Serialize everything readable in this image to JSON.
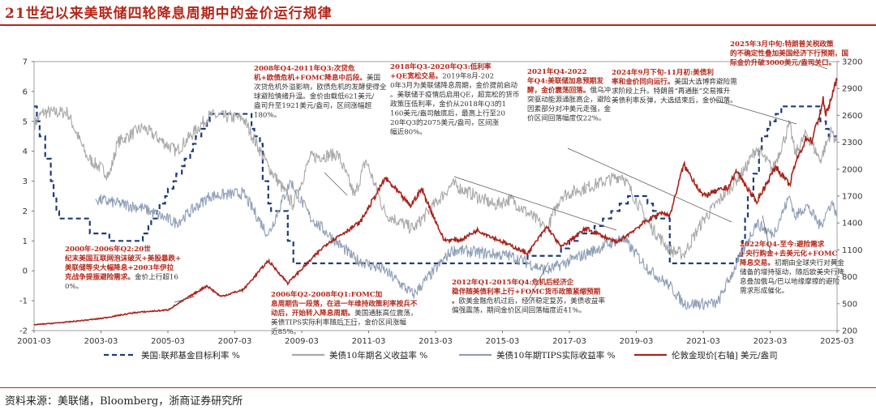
{
  "title": "21世纪以来美联储四轮降息周期中的金价运行规律",
  "source": "资料来源：美联储，Bloomberg，浙商证券研究所",
  "colors": {
    "accent": "#b5271a",
    "fed": "#1f3b78",
    "nominal": "#a9a9a9",
    "tips": "#8f9fb8",
    "gold": "#a8241b"
  },
  "chart_data": {
    "type": "line",
    "xlim": [
      "2001-03",
      "2025-03"
    ],
    "x_ticks": [
      "2001-03",
      "2003-03",
      "2005-03",
      "2007-03",
      "2009-03",
      "2011-03",
      "2013-03",
      "2015-03",
      "2017-03",
      "2019-03",
      "2021-03",
      "2023-03",
      "2025-03"
    ],
    "ylim_left": [
      -2,
      7
    ],
    "y_ticks_left": [
      "-2",
      "-1",
      "0",
      "1",
      "2",
      "3",
      "4",
      "5",
      "6",
      "7"
    ],
    "ylim_right": [
      200,
      3200
    ],
    "y_ticks_right": [
      "200",
      "500",
      "800",
      "1100",
      "1400",
      "1700",
      "2000",
      "2300",
      "2600",
      "2900",
      "3200"
    ],
    "grid": false,
    "legend_position": "bottom",
    "series": [
      {
        "name": "美国:联邦基金目标利率 %",
        "axis": "left",
        "style": "dashed",
        "points": [
          [
            "2001-03",
            5.5
          ],
          [
            "2001-04",
            5.0
          ],
          [
            "2001-05",
            4.5
          ],
          [
            "2001-07",
            3.75
          ],
          [
            "2001-09",
            3.0
          ],
          [
            "2001-10",
            2.5
          ],
          [
            "2001-11",
            2.0
          ],
          [
            "2001-12",
            1.75
          ],
          [
            "2002-11",
            1.25
          ],
          [
            "2003-06",
            1.0
          ],
          [
            "2004-06",
            1.25
          ],
          [
            "2004-08",
            1.5
          ],
          [
            "2004-09",
            1.75
          ],
          [
            "2004-11",
            2.0
          ],
          [
            "2004-12",
            2.25
          ],
          [
            "2005-02",
            2.5
          ],
          [
            "2005-03",
            2.75
          ],
          [
            "2005-05",
            3.0
          ],
          [
            "2005-06",
            3.25
          ],
          [
            "2005-08",
            3.5
          ],
          [
            "2005-09",
            3.75
          ],
          [
            "2005-11",
            4.0
          ],
          [
            "2005-12",
            4.25
          ],
          [
            "2006-01",
            4.5
          ],
          [
            "2006-03",
            4.75
          ],
          [
            "2006-05",
            5.0
          ],
          [
            "2006-06",
            5.25
          ],
          [
            "2007-09",
            4.75
          ],
          [
            "2007-10",
            4.5
          ],
          [
            "2007-12",
            4.25
          ],
          [
            "2008-01",
            3.0
          ],
          [
            "2008-03",
            2.25
          ],
          [
            "2008-04",
            2.0
          ],
          [
            "2008-10",
            1.0
          ],
          [
            "2008-12",
            0.25
          ],
          [
            "2015-12",
            0.5
          ],
          [
            "2016-12",
            0.75
          ],
          [
            "2017-03",
            1.0
          ],
          [
            "2017-06",
            1.25
          ],
          [
            "2017-12",
            1.5
          ],
          [
            "2018-03",
            1.75
          ],
          [
            "2018-06",
            2.0
          ],
          [
            "2018-09",
            2.25
          ],
          [
            "2018-12",
            2.5
          ],
          [
            "2019-07",
            2.25
          ],
          [
            "2019-09",
            2.0
          ],
          [
            "2019-10",
            1.75
          ],
          [
            "2020-03",
            0.25
          ],
          [
            "2022-03",
            0.5
          ],
          [
            "2022-05",
            1.0
          ],
          [
            "2022-06",
            1.75
          ],
          [
            "2022-07",
            2.5
          ],
          [
            "2022-09",
            3.25
          ],
          [
            "2022-11",
            4.0
          ],
          [
            "2022-12",
            4.5
          ],
          [
            "2023-02",
            4.75
          ],
          [
            "2023-03",
            5.0
          ],
          [
            "2023-05",
            5.25
          ],
          [
            "2023-07",
            5.5
          ],
          [
            "2024-09",
            5.0
          ],
          [
            "2024-11",
            4.75
          ],
          [
            "2024-12",
            4.5
          ],
          [
            "2025-03",
            4.5
          ]
        ]
      },
      {
        "name": "美债10年期名义收益率 %",
        "axis": "left",
        "style": "solid",
        "points": [
          [
            "2001-03",
            4.9
          ],
          [
            "2001-06",
            5.3
          ],
          [
            "2002-03",
            5.3
          ],
          [
            "2002-10",
            3.8
          ],
          [
            "2003-06",
            3.2
          ],
          [
            "2003-09",
            4.3
          ],
          [
            "2004-06",
            4.8
          ],
          [
            "2005-06",
            4.0
          ],
          [
            "2006-06",
            5.2
          ],
          [
            "2007-06",
            5.1
          ],
          [
            "2008-03",
            3.5
          ],
          [
            "2008-12",
            2.2
          ],
          [
            "2009-06",
            3.8
          ],
          [
            "2010-04",
            3.9
          ],
          [
            "2010-10",
            2.5
          ],
          [
            "2011-02",
            3.7
          ],
          [
            "2011-09",
            1.9
          ],
          [
            "2012-07",
            1.4
          ],
          [
            "2013-09",
            2.9
          ],
          [
            "2014-12",
            2.2
          ],
          [
            "2015-06",
            2.4
          ],
          [
            "2016-07",
            1.4
          ],
          [
            "2016-12",
            2.5
          ],
          [
            "2018-10",
            3.2
          ],
          [
            "2019-08",
            1.5
          ],
          [
            "2020-03",
            0.7
          ],
          [
            "2020-08",
            0.55
          ],
          [
            "2021-03",
            1.7
          ],
          [
            "2022-06",
            3.4
          ],
          [
            "2022-10",
            4.1
          ],
          [
            "2023-04",
            3.4
          ],
          [
            "2023-10",
            4.9
          ],
          [
            "2023-12",
            3.9
          ],
          [
            "2024-04",
            4.6
          ],
          [
            "2024-09",
            3.7
          ],
          [
            "2025-01",
            4.7
          ],
          [
            "2025-03",
            4.25
          ]
        ]
      },
      {
        "name": "美债10年期TIPS实际收益率 %",
        "axis": "left",
        "style": "solid",
        "points": [
          [
            "2003-01",
            2.4
          ],
          [
            "2004-06",
            2.1
          ],
          [
            "2005-06",
            1.6
          ],
          [
            "2006-06",
            2.5
          ],
          [
            "2007-06",
            2.6
          ],
          [
            "2008-03",
            1.2
          ],
          [
            "2008-11",
            3.0
          ],
          [
            "2009-06",
            1.8
          ],
          [
            "2010-10",
            0.4
          ],
          [
            "2011-09",
            0.0
          ],
          [
            "2012-07",
            -0.8
          ],
          [
            "2013-09",
            0.7
          ],
          [
            "2015-06",
            0.5
          ],
          [
            "2016-07",
            0.0
          ],
          [
            "2018-10",
            1.1
          ],
          [
            "2019-08",
            0.0
          ],
          [
            "2020-03",
            -0.5
          ],
          [
            "2020-08",
            -1.1
          ],
          [
            "2021-08",
            -1.1
          ],
          [
            "2022-06",
            0.8
          ],
          [
            "2022-10",
            1.6
          ],
          [
            "2023-04",
            1.2
          ],
          [
            "2023-10",
            2.5
          ],
          [
            "2023-12",
            1.8
          ],
          [
            "2024-04",
            2.2
          ],
          [
            "2024-09",
            1.5
          ],
          [
            "2025-01",
            2.3
          ],
          [
            "2025-03",
            1.9
          ]
        ]
      },
      {
        "name": "伦敦金现价[右轴] 美元/盎司",
        "axis": "right",
        "style": "solid",
        "points": [
          [
            "2001-03",
            265
          ],
          [
            "2002-03",
            295
          ],
          [
            "2003-03",
            335
          ],
          [
            "2004-03",
            400
          ],
          [
            "2005-03",
            430
          ],
          [
            "2006-05",
            700
          ],
          [
            "2006-10",
            580
          ],
          [
            "2007-06",
            655
          ],
          [
            "2008-03",
            980
          ],
          [
            "2008-10",
            730
          ],
          [
            "2009-12",
            1170
          ],
          [
            "2010-12",
            1410
          ],
          [
            "2011-09",
            1900
          ],
          [
            "2012-06",
            1590
          ],
          [
            "2012-10",
            1780
          ],
          [
            "2013-06",
            1210
          ],
          [
            "2013-12",
            1210
          ],
          [
            "2014-06",
            1320
          ],
          [
            "2015-12",
            1060
          ],
          [
            "2016-07",
            1360
          ],
          [
            "2016-12",
            1130
          ],
          [
            "2017-09",
            1340
          ],
          [
            "2018-08",
            1180
          ],
          [
            "2019-06",
            1410
          ],
          [
            "2019-12",
            1520
          ],
          [
            "2020-03",
            1480
          ],
          [
            "2020-08",
            2050
          ],
          [
            "2021-03",
            1700
          ],
          [
            "2021-12",
            1800
          ],
          [
            "2022-03",
            1980
          ],
          [
            "2022-10",
            1630
          ],
          [
            "2023-05",
            2030
          ],
          [
            "2023-10",
            1820
          ],
          [
            "2023-12",
            2060
          ],
          [
            "2024-04",
            2350
          ],
          [
            "2024-06",
            2320
          ],
          [
            "2024-09",
            2640
          ],
          [
            "2024-10",
            2770
          ],
          [
            "2024-11",
            2600
          ],
          [
            "2025-01",
            2800
          ],
          [
            "2025-03",
            3000
          ]
        ]
      }
    ],
    "annotations": [
      {
        "id": "a1",
        "title": "2000年-2006年Q2:",
        "bold": "20世纪末美国互联网泡沫破灭+美股暴跌+美联储等央大幅降息+2003年伊拉克战争提振避险需求。",
        "text": "金价上行超160%。"
      },
      {
        "id": "a2",
        "title": "2006年Q2-2008年Q1:",
        "bold": "FOMC加息周期告一段落，在进一年维持政策利率按兵不动后，开始转入降息周期。",
        "text": "美国通胀高位震荡，美债TIPS实际利率随后下行，金价区间涨幅近85%。"
      },
      {
        "id": "a3",
        "title": "2008年Q4-2011年Q3:",
        "bold": "次贷危机+欧债危机+FOMC降息中后段。",
        "text": "美国次贷危机外溢影响，欧债危机的发酵使得全球避险情绪升温。金价由载低621美元/盎司升至1921美元/盎司，区间涨幅超180%。"
      },
      {
        "id": "a4",
        "title": "2012年Q1-2015年Q4:",
        "bold": "危机后经济企稳伴随美债利率上行+FOMC货币政策紧缩预期。",
        "text": "欧美金融危机过后，经济稳定复苏，美债收益率偏强震荡，期间金价区间回落幅度近41%。"
      },
      {
        "id": "a5",
        "title": "2018年Q3-2020年Q3:",
        "bold": "低利率+QE宽松交易。",
        "text": "2019年8月-2020年3月为美联储降息周期，金价提前启动。美联储于疫情后启用QE，超宽松的货币政策压低利率，金价从2018年Q3的1160美元/盎司触底后，最高上行至2020年Q3的2075美元/盎司，区间涨幅近80%。"
      },
      {
        "id": "a6",
        "title": "2021年Q4-2022年Q4:",
        "bold": "美联储加息预期发酵，金价震荡回落。",
        "text": "俄乌冲突驱动能源通胀高企，避险因素部分对冲美元走强，金价区间回落幅度仅22%。"
      },
      {
        "id": "a7",
        "title": "2024年9月下旬-11月初:",
        "bold": "美债利率和金价同向运行。",
        "text": "美国大选博弈避险需求阶段上升。特朗普“再通胀”交易推升美债利率反弹，大选结束后，金价回落。"
      },
      {
        "id": "a8",
        "title": "2025年3月中旬:",
        "bold": "特朗普关税政策的不确定性叠加美国经济下行预期，国际金价升破3000美元/盎司关口。",
        "text": ""
      },
      {
        "id": "a9",
        "title": "2022年Q4-至今:",
        "bold": "避险需求+央行购金+去美元化+FOMC降息交易。",
        "text": "初期由全球央行对黄金储备的增持驱动，随后欧美央行降息叠加俄乌/巴以地缘摩擦的避险需求形成催化。"
      }
    ]
  }
}
